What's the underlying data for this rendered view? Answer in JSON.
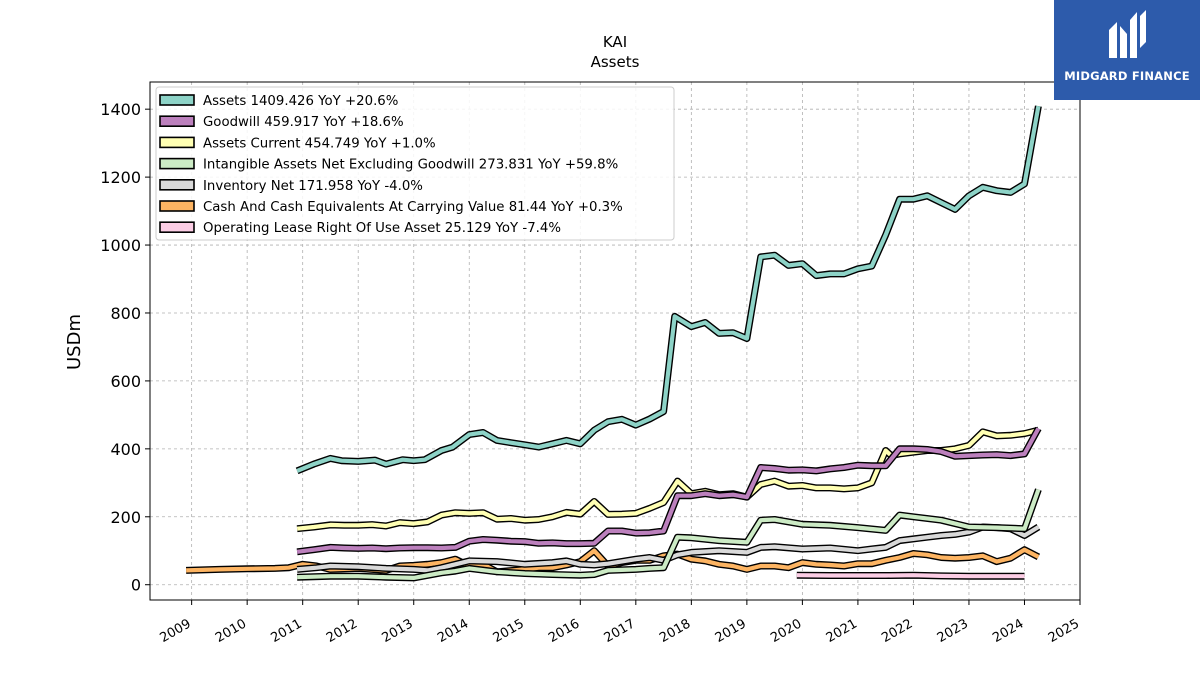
{
  "brand": {
    "name": "MIDGARD FINANCE",
    "bg_color": "#2d5bab"
  },
  "chart_data": {
    "type": "line",
    "title": "KAI",
    "subtitle": "Assets",
    "xlabel": "",
    "ylabel": "USDm",
    "xlim": [
      2008.25,
      2025.0
    ],
    "ylim": [
      -45,
      1480
    ],
    "yticks": [
      0,
      200,
      400,
      600,
      800,
      1000,
      1200,
      1400
    ],
    "xticks": [
      2009,
      2010,
      2011,
      2012,
      2013,
      2014,
      2015,
      2016,
      2017,
      2018,
      2019,
      2020,
      2021,
      2022,
      2023,
      2024,
      2025
    ],
    "grid": true,
    "legend_position": "top-left",
    "series": [
      {
        "name": "Assets",
        "legend": "Assets  1409.426 YoY +20.6%",
        "color": "#8dd3c7",
        "x": [
          2010.9,
          2011.2,
          2011.5,
          2011.7,
          2012.0,
          2012.3,
          2012.5,
          2012.8,
          2013.0,
          2013.2,
          2013.5,
          2013.7,
          2014.0,
          2014.25,
          2014.5,
          2014.75,
          2015.0,
          2015.25,
          2015.5,
          2015.75,
          2016.0,
          2016.25,
          2016.5,
          2016.75,
          2017.0,
          2017.25,
          2017.5,
          2017.7,
          2018.0,
          2018.25,
          2018.5,
          2018.75,
          2019.0,
          2019.25,
          2019.5,
          2019.75,
          2020.0,
          2020.25,
          2020.5,
          2020.75,
          2021.0,
          2021.25,
          2021.5,
          2021.75,
          2022.0,
          2022.25,
          2022.5,
          2022.75,
          2023.0,
          2023.25,
          2023.5,
          2023.75,
          2024.0,
          2024.25
        ],
        "y": [
          335,
          355,
          372,
          365,
          363,
          367,
          355,
          368,
          365,
          368,
          395,
          405,
          442,
          448,
          425,
          418,
          412,
          405,
          415,
          425,
          415,
          455,
          480,
          487,
          470,
          488,
          510,
          790,
          760,
          772,
          740,
          742,
          725,
          965,
          970,
          940,
          945,
          910,
          915,
          915,
          930,
          938,
          1030,
          1135,
          1135,
          1145,
          1125,
          1105,
          1145,
          1170,
          1160,
          1155,
          1180,
          1409
        ]
      },
      {
        "name": "Goodwill",
        "legend": "Goodwill  459.917 YoY +18.6%",
        "color": "#bc80bd",
        "x": [
          2010.9,
          2011.2,
          2011.5,
          2011.75,
          2012.0,
          2012.25,
          2012.5,
          2012.75,
          2013.0,
          2013.25,
          2013.5,
          2013.75,
          2014.0,
          2014.25,
          2014.5,
          2014.75,
          2015.0,
          2015.25,
          2015.5,
          2015.75,
          2016.0,
          2016.25,
          2016.5,
          2016.75,
          2017.0,
          2017.25,
          2017.5,
          2017.75,
          2018.0,
          2018.25,
          2018.5,
          2018.75,
          2019.0,
          2019.25,
          2019.5,
          2019.75,
          2020.0,
          2020.25,
          2020.5,
          2020.75,
          2021.0,
          2021.25,
          2021.5,
          2021.75,
          2022.0,
          2022.25,
          2022.5,
          2022.75,
          2023.0,
          2023.25,
          2023.5,
          2023.75,
          2024.0,
          2024.25
        ],
        "y": [
          97,
          103,
          110,
          108,
          107,
          108,
          106,
          108,
          109,
          109,
          108,
          110,
          128,
          133,
          131,
          128,
          127,
          122,
          123,
          121,
          121,
          122,
          158,
          158,
          152,
          153,
          158,
          262,
          262,
          268,
          262,
          265,
          258,
          345,
          342,
          337,
          338,
          335,
          341,
          345,
          352,
          350,
          350,
          400,
          400,
          398,
          392,
          378,
          380,
          382,
          383,
          380,
          385,
          460
        ]
      },
      {
        "name": "Assets Current",
        "legend": "Assets Current  454.749 YoY +1.0%",
        "color": "#ffffb3",
        "x": [
          2010.9,
          2011.2,
          2011.5,
          2011.75,
          2012.0,
          2012.25,
          2012.5,
          2012.75,
          2013.0,
          2013.25,
          2013.5,
          2013.75,
          2014.0,
          2014.25,
          2014.5,
          2014.75,
          2015.0,
          2015.25,
          2015.5,
          2015.75,
          2016.0,
          2016.25,
          2016.5,
          2016.75,
          2017.0,
          2017.25,
          2017.5,
          2017.75,
          2018.0,
          2018.25,
          2018.5,
          2018.75,
          2019.0,
          2019.25,
          2019.5,
          2019.75,
          2020.0,
          2020.25,
          2020.5,
          2020.75,
          2021.0,
          2021.25,
          2021.5,
          2021.6,
          2021.75,
          2022.0,
          2022.25,
          2022.5,
          2022.75,
          2023.0,
          2023.25,
          2023.5,
          2023.75,
          2024.0,
          2024.25
        ],
        "y": [
          165,
          170,
          176,
          175,
          175,
          177,
          173,
          183,
          180,
          185,
          205,
          212,
          210,
          212,
          193,
          195,
          190,
          192,
          200,
          213,
          208,
          245,
          207,
          208,
          210,
          225,
          242,
          305,
          268,
          275,
          265,
          268,
          258,
          295,
          305,
          290,
          292,
          285,
          285,
          282,
          285,
          300,
          395,
          380,
          385,
          390,
          395,
          395,
          400,
          410,
          450,
          438,
          440,
          445,
          455
        ]
      },
      {
        "name": "Intangible Assets Net Excluding Goodwill",
        "legend": "Intangible Assets Net Excluding Goodwill  273.831 YoY +59.8%",
        "color": "#ccebc5",
        "x": [
          2010.9,
          2011.5,
          2012.0,
          2012.5,
          2013.0,
          2013.5,
          2013.75,
          2014.0,
          2014.5,
          2015.0,
          2015.5,
          2016.0,
          2016.25,
          2016.5,
          2017.0,
          2017.25,
          2017.5,
          2017.75,
          2018.0,
          2018.5,
          2019.0,
          2019.25,
          2019.5,
          2020.0,
          2020.5,
          2021.0,
          2021.5,
          2021.75,
          2022.0,
          2022.5,
          2022.75,
          2023.0,
          2023.5,
          2024.0,
          2024.25
        ],
        "y": [
          22,
          25,
          25,
          22,
          20,
          35,
          40,
          48,
          38,
          33,
          30,
          28,
          30,
          42,
          45,
          48,
          50,
          140,
          138,
          130,
          125,
          190,
          192,
          178,
          175,
          168,
          160,
          205,
          200,
          190,
          180,
          170,
          168,
          165,
          280
        ]
      },
      {
        "name": "Inventory Net",
        "legend": "Inventory Net  171.958 YoY -4.0%",
        "color": "#d9d9d9",
        "x": [
          2010.9,
          2011.25,
          2011.5,
          2012.0,
          2012.5,
          2013.0,
          2013.25,
          2013.5,
          2013.75,
          2014.0,
          2014.5,
          2015.0,
          2015.5,
          2015.75,
          2016.0,
          2016.25,
          2016.5,
          2017.0,
          2017.25,
          2017.5,
          2017.75,
          2018.0,
          2018.5,
          2019.0,
          2019.25,
          2019.5,
          2020.0,
          2020.5,
          2021.0,
          2021.25,
          2021.5,
          2021.75,
          2022.0,
          2022.25,
          2022.5,
          2022.75,
          2023.0,
          2023.25,
          2023.5,
          2023.75,
          2024.0,
          2024.25
        ],
        "y": [
          45,
          50,
          55,
          53,
          48,
          45,
          42,
          50,
          60,
          70,
          68,
          60,
          65,
          70,
          60,
          58,
          62,
          75,
          80,
          72,
          88,
          95,
          100,
          95,
          110,
          112,
          105,
          108,
          100,
          105,
          110,
          130,
          135,
          140,
          145,
          148,
          155,
          170,
          168,
          165,
          145,
          170
        ]
      },
      {
        "name": "Cash And Cash Equivalents At Carrying Value",
        "legend": "Cash And Cash Equivalents At Carrying Value  81.44 YoY +0.3%",
        "color": "#fdb462",
        "x": [
          2008.9,
          2009.5,
          2010.0,
          2010.5,
          2010.75,
          2011.0,
          2011.25,
          2011.5,
          2012.0,
          2012.25,
          2012.5,
          2012.75,
          2013.0,
          2013.25,
          2013.5,
          2013.75,
          2014.0,
          2014.25,
          2014.5,
          2015.0,
          2015.25,
          2015.5,
          2015.75,
          2016.0,
          2016.25,
          2016.5,
          2016.75,
          2017.0,
          2017.25,
          2017.5,
          2017.75,
          2018.0,
          2018.25,
          2018.5,
          2018.75,
          2019.0,
          2019.25,
          2019.5,
          2019.75,
          2020.0,
          2020.25,
          2020.5,
          2020.75,
          2021.0,
          2021.25,
          2021.5,
          2021.75,
          2022.0,
          2022.25,
          2022.5,
          2022.75,
          2023.0,
          2023.25,
          2023.5,
          2023.75,
          2024.0,
          2024.25
        ],
        "y": [
          42,
          45,
          47,
          48,
          50,
          60,
          55,
          45,
          48,
          45,
          42,
          55,
          57,
          60,
          65,
          75,
          55,
          60,
          38,
          45,
          50,
          50,
          58,
          68,
          100,
          55,
          65,
          72,
          72,
          85,
          90,
          75,
          70,
          60,
          55,
          45,
          55,
          55,
          50,
          65,
          60,
          58,
          55,
          62,
          62,
          72,
          80,
          92,
          88,
          80,
          78,
          80,
          85,
          68,
          78,
          103,
          82
        ]
      },
      {
        "name": "Operating Lease Right Of Use Asset",
        "legend": "Operating Lease Right Of Use Asset  25.129 YoY -7.4%",
        "color": "#fccde5",
        "x": [
          2019.9,
          2020.5,
          2021.0,
          2021.5,
          2022.0,
          2022.5,
          2023.0,
          2023.5,
          2024.0
        ],
        "y": [
          28,
          27,
          27,
          27,
          28,
          26,
          25,
          25,
          25
        ]
      }
    ]
  }
}
